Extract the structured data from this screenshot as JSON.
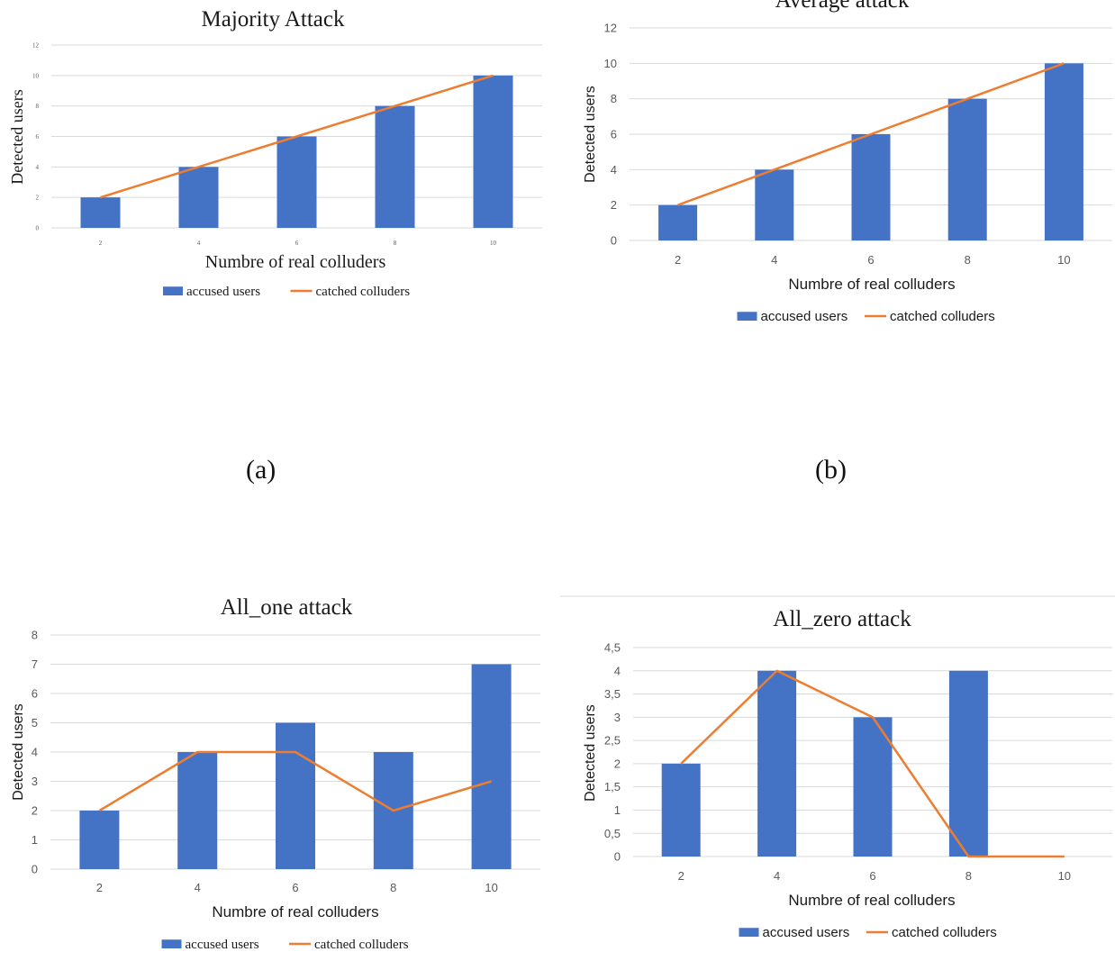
{
  "captions": {
    "a": "(a)",
    "b": "(b)"
  },
  "colors": {
    "bar": "#4472c4",
    "line": "#ed7d31",
    "grid": "#d9d9d9",
    "axis_text": "#595959"
  },
  "chart_data": [
    {
      "id": "c1",
      "type": "bar",
      "title": "Majority Attack",
      "xlabel": "Numbre of real colluders",
      "ylabel": "Detected users",
      "categories": [
        "2",
        "4",
        "6",
        "8",
        "10"
      ],
      "ylim": [
        0,
        12
      ],
      "yticks": [
        "0",
        "2",
        "4",
        "6",
        "8",
        "10",
        "12"
      ],
      "series": [
        {
          "name": "accused users",
          "kind": "bar",
          "values": [
            2,
            4,
            6,
            8,
            10
          ]
        },
        {
          "name": "catched colluders",
          "kind": "line",
          "values": [
            2,
            4,
            6,
            8,
            10
          ]
        }
      ],
      "grid": true,
      "legend": "bottom"
    },
    {
      "id": "c2",
      "type": "bar",
      "title": "Average attack",
      "xlabel": "Numbre of real colluders",
      "ylabel": "Detected users",
      "categories": [
        "2",
        "4",
        "6",
        "8",
        "10"
      ],
      "ylim": [
        0,
        12
      ],
      "yticks": [
        "0",
        "2",
        "4",
        "6",
        "8",
        "10",
        "12"
      ],
      "series": [
        {
          "name": "accused users",
          "kind": "bar",
          "values": [
            2,
            4,
            6,
            8,
            10
          ]
        },
        {
          "name": "catched colluders",
          "kind": "line",
          "values": [
            2,
            4,
            6,
            8,
            10
          ]
        }
      ],
      "grid": true,
      "legend": "bottom"
    },
    {
      "id": "c3",
      "type": "bar",
      "title": "All_one attack",
      "xlabel": "Numbre of real colluders",
      "ylabel": "Detected users",
      "categories": [
        "2",
        "4",
        "6",
        "8",
        "10"
      ],
      "ylim": [
        0,
        8
      ],
      "yticks": [
        "0",
        "1",
        "2",
        "3",
        "4",
        "5",
        "6",
        "7",
        "8"
      ],
      "series": [
        {
          "name": "accused users",
          "kind": "bar",
          "values": [
            2,
            4,
            5,
            4,
            7
          ]
        },
        {
          "name": "catched colluders",
          "kind": "line",
          "values": [
            2,
            4,
            4,
            2,
            3
          ]
        }
      ],
      "grid": true,
      "legend": "bottom"
    },
    {
      "id": "c4",
      "type": "bar",
      "title": "All_zero attack",
      "xlabel": "Numbre of real colluders",
      "ylabel": "Detected users",
      "categories": [
        "2",
        "4",
        "6",
        "8",
        "10"
      ],
      "ylim": [
        0,
        4.5
      ],
      "yticks": [
        "0",
        "0,5",
        "1",
        "1,5",
        "2",
        "2,5",
        "3",
        "3,5",
        "4",
        "4,5"
      ],
      "series": [
        {
          "name": "accused users",
          "kind": "bar",
          "values": [
            2,
            4,
            3,
            4,
            0
          ]
        },
        {
          "name": "catched colluders",
          "kind": "line",
          "values": [
            2,
            4,
            3,
            0,
            0
          ]
        }
      ],
      "grid": true,
      "legend": "bottom"
    }
  ]
}
